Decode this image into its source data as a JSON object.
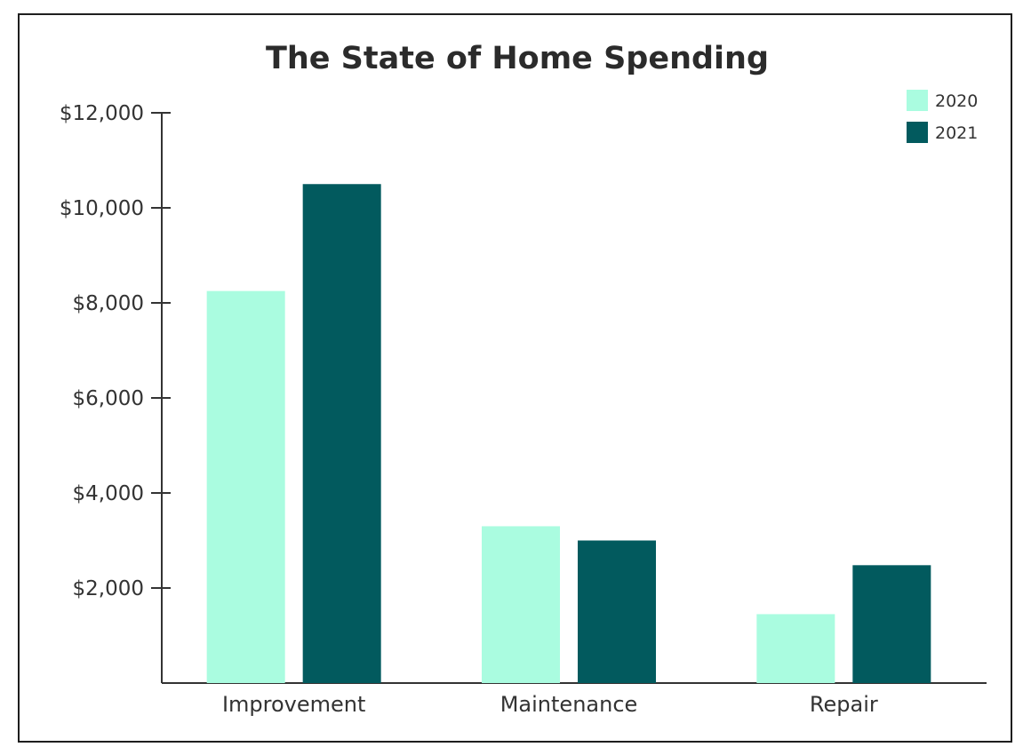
{
  "chart_data": {
    "type": "bar",
    "title": "The State of Home Spending",
    "xlabel": "",
    "ylabel": "",
    "categories": [
      "Improvement",
      "Maintenance",
      "Repair"
    ],
    "series": [
      {
        "name": "2020",
        "values": [
          8250,
          3300,
          1450
        ],
        "color": "#aafce0"
      },
      {
        "name": "2021",
        "values": [
          10500,
          3000,
          2480
        ],
        "color": "#025a5e"
      }
    ],
    "ylim": [
      0,
      12000
    ],
    "yticks": [
      2000,
      4000,
      6000,
      8000,
      10000,
      12000
    ],
    "ytick_labels": [
      "$2,000",
      "$4,000",
      "$6,000",
      "$8,000",
      "$10,000",
      "$12,000"
    ],
    "grid": false,
    "legend_position": "top-right",
    "axis_color": "#333333"
  }
}
